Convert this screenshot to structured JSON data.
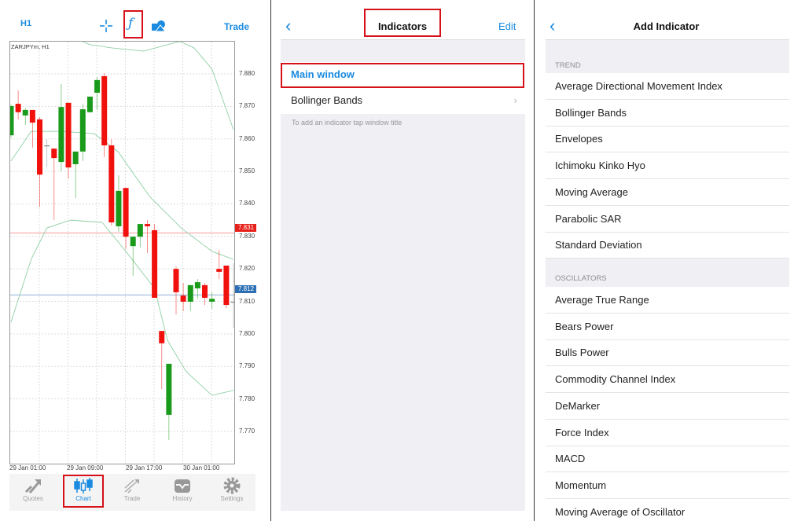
{
  "chart_panel": {
    "timeframe": "H1",
    "toolbar_icons": [
      "crosshair-icon",
      "function-icon",
      "objects-icon"
    ],
    "trade_label": "Trade",
    "symbol_label": "ZARJPYm, H1",
    "tabs": [
      {
        "label": "Quotes",
        "icon": "quotes-icon",
        "active": false
      },
      {
        "label": "Chart",
        "icon": "chart-icon",
        "active": true
      },
      {
        "label": "Trade",
        "icon": "trade-icon",
        "active": false
      },
      {
        "label": "History",
        "icon": "history-icon",
        "active": false
      },
      {
        "label": "Settings",
        "icon": "gear-icon",
        "active": false
      }
    ]
  },
  "chart_data": {
    "type": "candlestick",
    "symbol": "ZARJPYm",
    "timeframe": "H1",
    "ylim": [
      7.7655,
      7.894
    ],
    "y_ticks": [
      "7.880",
      "7.870",
      "7.860",
      "7.850",
      "7.840",
      "7.830",
      "7.820",
      "7.810",
      "7.800",
      "7.790",
      "7.780",
      "7.770"
    ],
    "x_tick_labels": [
      "29 Jan 01:00",
      "29 Jan 09:00",
      "29 Jan 17:00",
      "30 Jan 01:00"
    ],
    "grid": true,
    "price_lines": [
      {
        "label": "7.831",
        "value": 7.831,
        "color": "#e8201a"
      },
      {
        "label": "7.812",
        "value": 7.812,
        "color": "#2c6fb5"
      }
    ],
    "colors": {
      "up": "#1a9a1a",
      "down": "#f0110d",
      "band": "#8fd0a4",
      "neutral": "#888888"
    },
    "candles_ohlc": [
      [
        7.8611,
        7.8706,
        7.8604,
        7.8701
      ],
      [
        7.8708,
        7.8749,
        7.866,
        7.8682
      ],
      [
        7.8672,
        7.8696,
        7.8643,
        7.8689
      ],
      [
        7.8689,
        7.8689,
        7.8573,
        7.865
      ],
      [
        7.866,
        7.8667,
        7.8391,
        7.849
      ],
      [
        7.858,
        7.8599,
        7.8512,
        7.858
      ],
      [
        7.857,
        7.857,
        7.835,
        7.8541
      ],
      [
        7.8529,
        7.8769,
        7.85,
        7.8698
      ],
      [
        7.8711,
        7.8711,
        7.8478,
        7.8512
      ],
      [
        7.8522,
        7.8561,
        7.8418,
        7.8561
      ],
      [
        7.8561,
        7.8708,
        7.8532,
        7.8691
      ],
      [
        7.8682,
        7.873,
        7.8682,
        7.873
      ],
      [
        7.8742,
        7.879,
        7.8689,
        7.8781
      ],
      [
        7.8793,
        7.8802,
        7.8544,
        7.858
      ],
      [
        7.858,
        7.8599,
        7.8333,
        7.8343
      ],
      [
        7.8331,
        7.8488,
        7.8314,
        7.844
      ],
      [
        7.8449,
        7.8449,
        7.8261,
        7.8299
      ],
      [
        7.827,
        7.8299,
        7.8179,
        7.8299
      ],
      [
        7.8299,
        7.8338,
        7.8266,
        7.8338
      ],
      [
        7.8338,
        7.835,
        7.8249,
        7.8331
      ],
      [
        7.8319,
        7.8338,
        7.8111,
        7.8111
      ],
      [
        7.8009,
        7.8009,
        7.783,
        7.7971
      ],
      [
        7.7751,
        7.7908,
        7.7673,
        7.7908
      ],
      [
        7.82,
        7.8208,
        7.806,
        7.8128
      ],
      [
        7.8118,
        7.8157,
        7.807,
        7.8099
      ],
      [
        7.8099,
        7.815,
        7.807,
        7.815
      ],
      [
        7.814,
        7.8169,
        7.8108,
        7.8159
      ],
      [
        7.815,
        7.8157,
        7.8089,
        7.8111
      ],
      [
        7.8099,
        7.8128,
        7.8077,
        7.8108
      ],
      [
        7.82,
        7.8258,
        7.8169,
        7.8191
      ],
      [
        7.821,
        7.821,
        7.8079,
        7.8089
      ],
      [
        7.8099,
        7.8217,
        7.8019,
        7.8099
      ]
    ],
    "bollinger": {
      "upper": [
        [
          6,
          7.895
        ],
        [
          9.4,
          7.8905
        ],
        [
          11,
          7.889
        ],
        [
          14,
          7.888
        ],
        [
          18.5,
          7.887
        ],
        [
          21,
          7.8885
        ],
        [
          23.5,
          7.89
        ],
        [
          25.5,
          7.888
        ],
        [
          28,
          7.8815
        ],
        [
          31,
          7.8628
        ]
      ],
      "middle": [
        [
          0,
          7.8532
        ],
        [
          2.8,
          7.8623
        ],
        [
          7.2,
          7.8623
        ],
        [
          11.6,
          7.8616
        ],
        [
          14.9,
          7.8561
        ],
        [
          19.3,
          7.8423
        ],
        [
          23.7,
          7.8326
        ],
        [
          28,
          7.8254
        ],
        [
          31,
          7.8229
        ]
      ],
      "lower": [
        [
          0,
          7.8036
        ],
        [
          2.8,
          7.8229
        ],
        [
          5,
          7.8326
        ],
        [
          8.3,
          7.835
        ],
        [
          12.7,
          7.8343
        ],
        [
          16,
          7.8254
        ],
        [
          20,
          7.814
        ],
        [
          21.8,
          7.798
        ],
        [
          24.4,
          7.7884
        ],
        [
          28,
          7.7811
        ],
        [
          31,
          7.7826
        ]
      ]
    }
  },
  "indicators_panel": {
    "title": "Indicators",
    "edit_label": "Edit",
    "main_window_label": "Main window",
    "items": [
      "Bollinger Bands"
    ],
    "hint": "To add an indicator tap window title"
  },
  "add_indicator_panel": {
    "title": "Add Indicator",
    "sections": [
      {
        "label": "TREND",
        "items": [
          "Average Directional Movement Index",
          "Bollinger Bands",
          "Envelopes",
          "Ichimoku Kinko Hyo",
          "Moving Average",
          "Parabolic SAR",
          "Standard Deviation"
        ]
      },
      {
        "label": "OSCILLATORS",
        "items": [
          "Average True Range",
          "Bears Power",
          "Bulls Power",
          "Commodity Channel Index",
          "DeMarker",
          "Force Index",
          "MACD",
          "Momentum",
          "Moving Average of Oscillator"
        ]
      }
    ]
  }
}
